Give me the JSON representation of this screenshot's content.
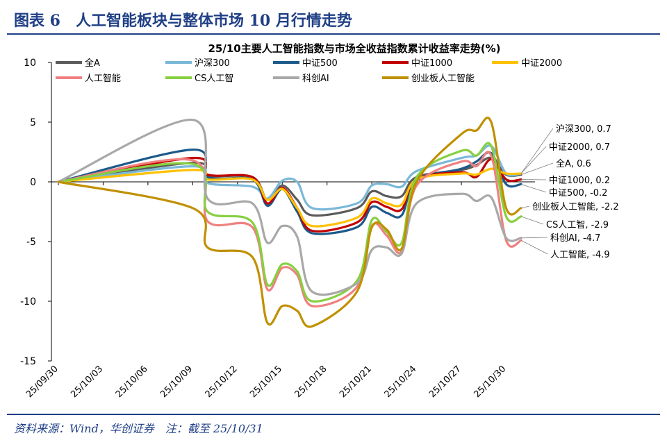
{
  "figure": {
    "title": "图表 6　人工智能板块与整体市场 10 月行情走势",
    "source": "资料来源：Wind，华创证券　注：截至 25/10/31"
  },
  "chart_data": {
    "type": "line",
    "title": "25/10主要人工智能指数与市场全收益指数累计收益率走势(%)",
    "xlabel": "",
    "ylabel": "",
    "ylim": [
      -15,
      10
    ],
    "yticks": [
      10,
      5,
      0,
      -5,
      -10,
      -15
    ],
    "x": [
      "25/09/30",
      "25/10/09",
      "25/10/10",
      "25/10/13",
      "25/10/14",
      "25/10/15",
      "25/10/16",
      "25/10/17",
      "25/10/20",
      "25/10/21",
      "25/10/22",
      "25/10/23",
      "25/10/24",
      "25/10/27",
      "25/10/28",
      "25/10/29",
      "25/10/30",
      "25/10/31"
    ],
    "x_pos": [
      0,
      9,
      10,
      13,
      14,
      15,
      16,
      17,
      20,
      21,
      22,
      23,
      24,
      27,
      28,
      29,
      30,
      31
    ],
    "tick_labels": [
      "25/09/30",
      "25/10/03",
      "25/10/06",
      "25/10/09",
      "25/10/12",
      "25/10/15",
      "25/10/18",
      "25/10/21",
      "25/10/24",
      "25/10/27",
      "25/10/30"
    ],
    "tick_pos": [
      0,
      3,
      6,
      9,
      12,
      15,
      18,
      21,
      24,
      27,
      30
    ],
    "legend_position": "top",
    "series": [
      {
        "name": "全A",
        "color": "#5a5a5a",
        "end_label": "全A, 0.6",
        "values": [
          0,
          1.6,
          0.5,
          0.4,
          -1.5,
          -0.3,
          -1.5,
          -2.8,
          -2.2,
          -0.8,
          -1.2,
          -1.2,
          0.4,
          1.0,
          1.4,
          2.0,
          0.6,
          0.6
        ]
      },
      {
        "name": "沪深300",
        "color": "#7ab8d8",
        "end_label": "沪深300, 0.7",
        "values": [
          0,
          1.3,
          -0.1,
          -0.4,
          -1.4,
          0.1,
          0.0,
          -2.2,
          -1.8,
          -0.3,
          -0.2,
          -0.4,
          0.9,
          2.0,
          2.2,
          3.0,
          0.7,
          0.7
        ]
      },
      {
        "name": "中证500",
        "color": "#1b5a8a",
        "end_label": "中证500, -0.2",
        "values": [
          0,
          2.7,
          0.4,
          0.2,
          -2.0,
          -0.6,
          -2.5,
          -4.3,
          -3.8,
          -2.1,
          -2.6,
          -2.8,
          0.1,
          1.1,
          1.7,
          2.4,
          -0.2,
          -0.2
        ]
      },
      {
        "name": "中证1000",
        "color": "#c00000",
        "end_label": "中证1000, 0.2",
        "values": [
          0,
          2.0,
          0.6,
          0.4,
          -1.8,
          -0.5,
          -2.2,
          -4.1,
          -3.4,
          -1.7,
          -2.1,
          -2.3,
          0.2,
          0.8,
          0.4,
          1.9,
          0.2,
          0.2
        ]
      },
      {
        "name": "中证2000",
        "color": "#ffc000",
        "end_label": "中证2000, 0.7",
        "values": [
          0,
          1.0,
          0.2,
          0.2,
          -1.5,
          -0.6,
          -2.2,
          -3.7,
          -3.0,
          -1.4,
          -1.8,
          -1.9,
          0.2,
          0.7,
          0.6,
          1.1,
          0.7,
          0.7
        ]
      },
      {
        "name": "人工智能",
        "color": "#f08080",
        "end_label": "人工智能, -4.9",
        "values": [
          0,
          1.8,
          -3.3,
          -3.8,
          -9.0,
          -7.2,
          -7.8,
          -10.4,
          -8.8,
          -3.7,
          -4.5,
          -5.8,
          -0.3,
          1.7,
          1.3,
          2.2,
          -4.9,
          -4.9
        ]
      },
      {
        "name": "CS人工智",
        "color": "#86d040",
        "end_label": "CS人工智, -2.9",
        "values": [
          0,
          1.5,
          -2.5,
          -3.4,
          -8.6,
          -6.9,
          -7.5,
          -10.0,
          -8.3,
          -3.2,
          -4.2,
          -5.1,
          0.4,
          2.6,
          2.2,
          3.0,
          -2.9,
          -2.9
        ]
      },
      {
        "name": "科创AI",
        "color": "#a8a8a8",
        "end_label": "科创AI, -4.7",
        "values": [
          0,
          5.2,
          -1.4,
          -1.8,
          -5.1,
          -3.7,
          -4.6,
          -9.2,
          -8.5,
          -5.7,
          -5.5,
          -6.0,
          -1.8,
          -1.0,
          -1.6,
          -1.3,
          -4.7,
          -4.7
        ]
      },
      {
        "name": "创业板人工智能",
        "color": "#c09000",
        "end_label": "创业板人工智能, -2.2",
        "values": [
          0,
          -2.2,
          -5.5,
          -6.3,
          -11.8,
          -10.4,
          -10.8,
          -12.1,
          -9.2,
          -3.8,
          -4.0,
          -5.6,
          0.0,
          4.0,
          4.3,
          5.0,
          -2.2,
          -2.2
        ]
      }
    ]
  }
}
